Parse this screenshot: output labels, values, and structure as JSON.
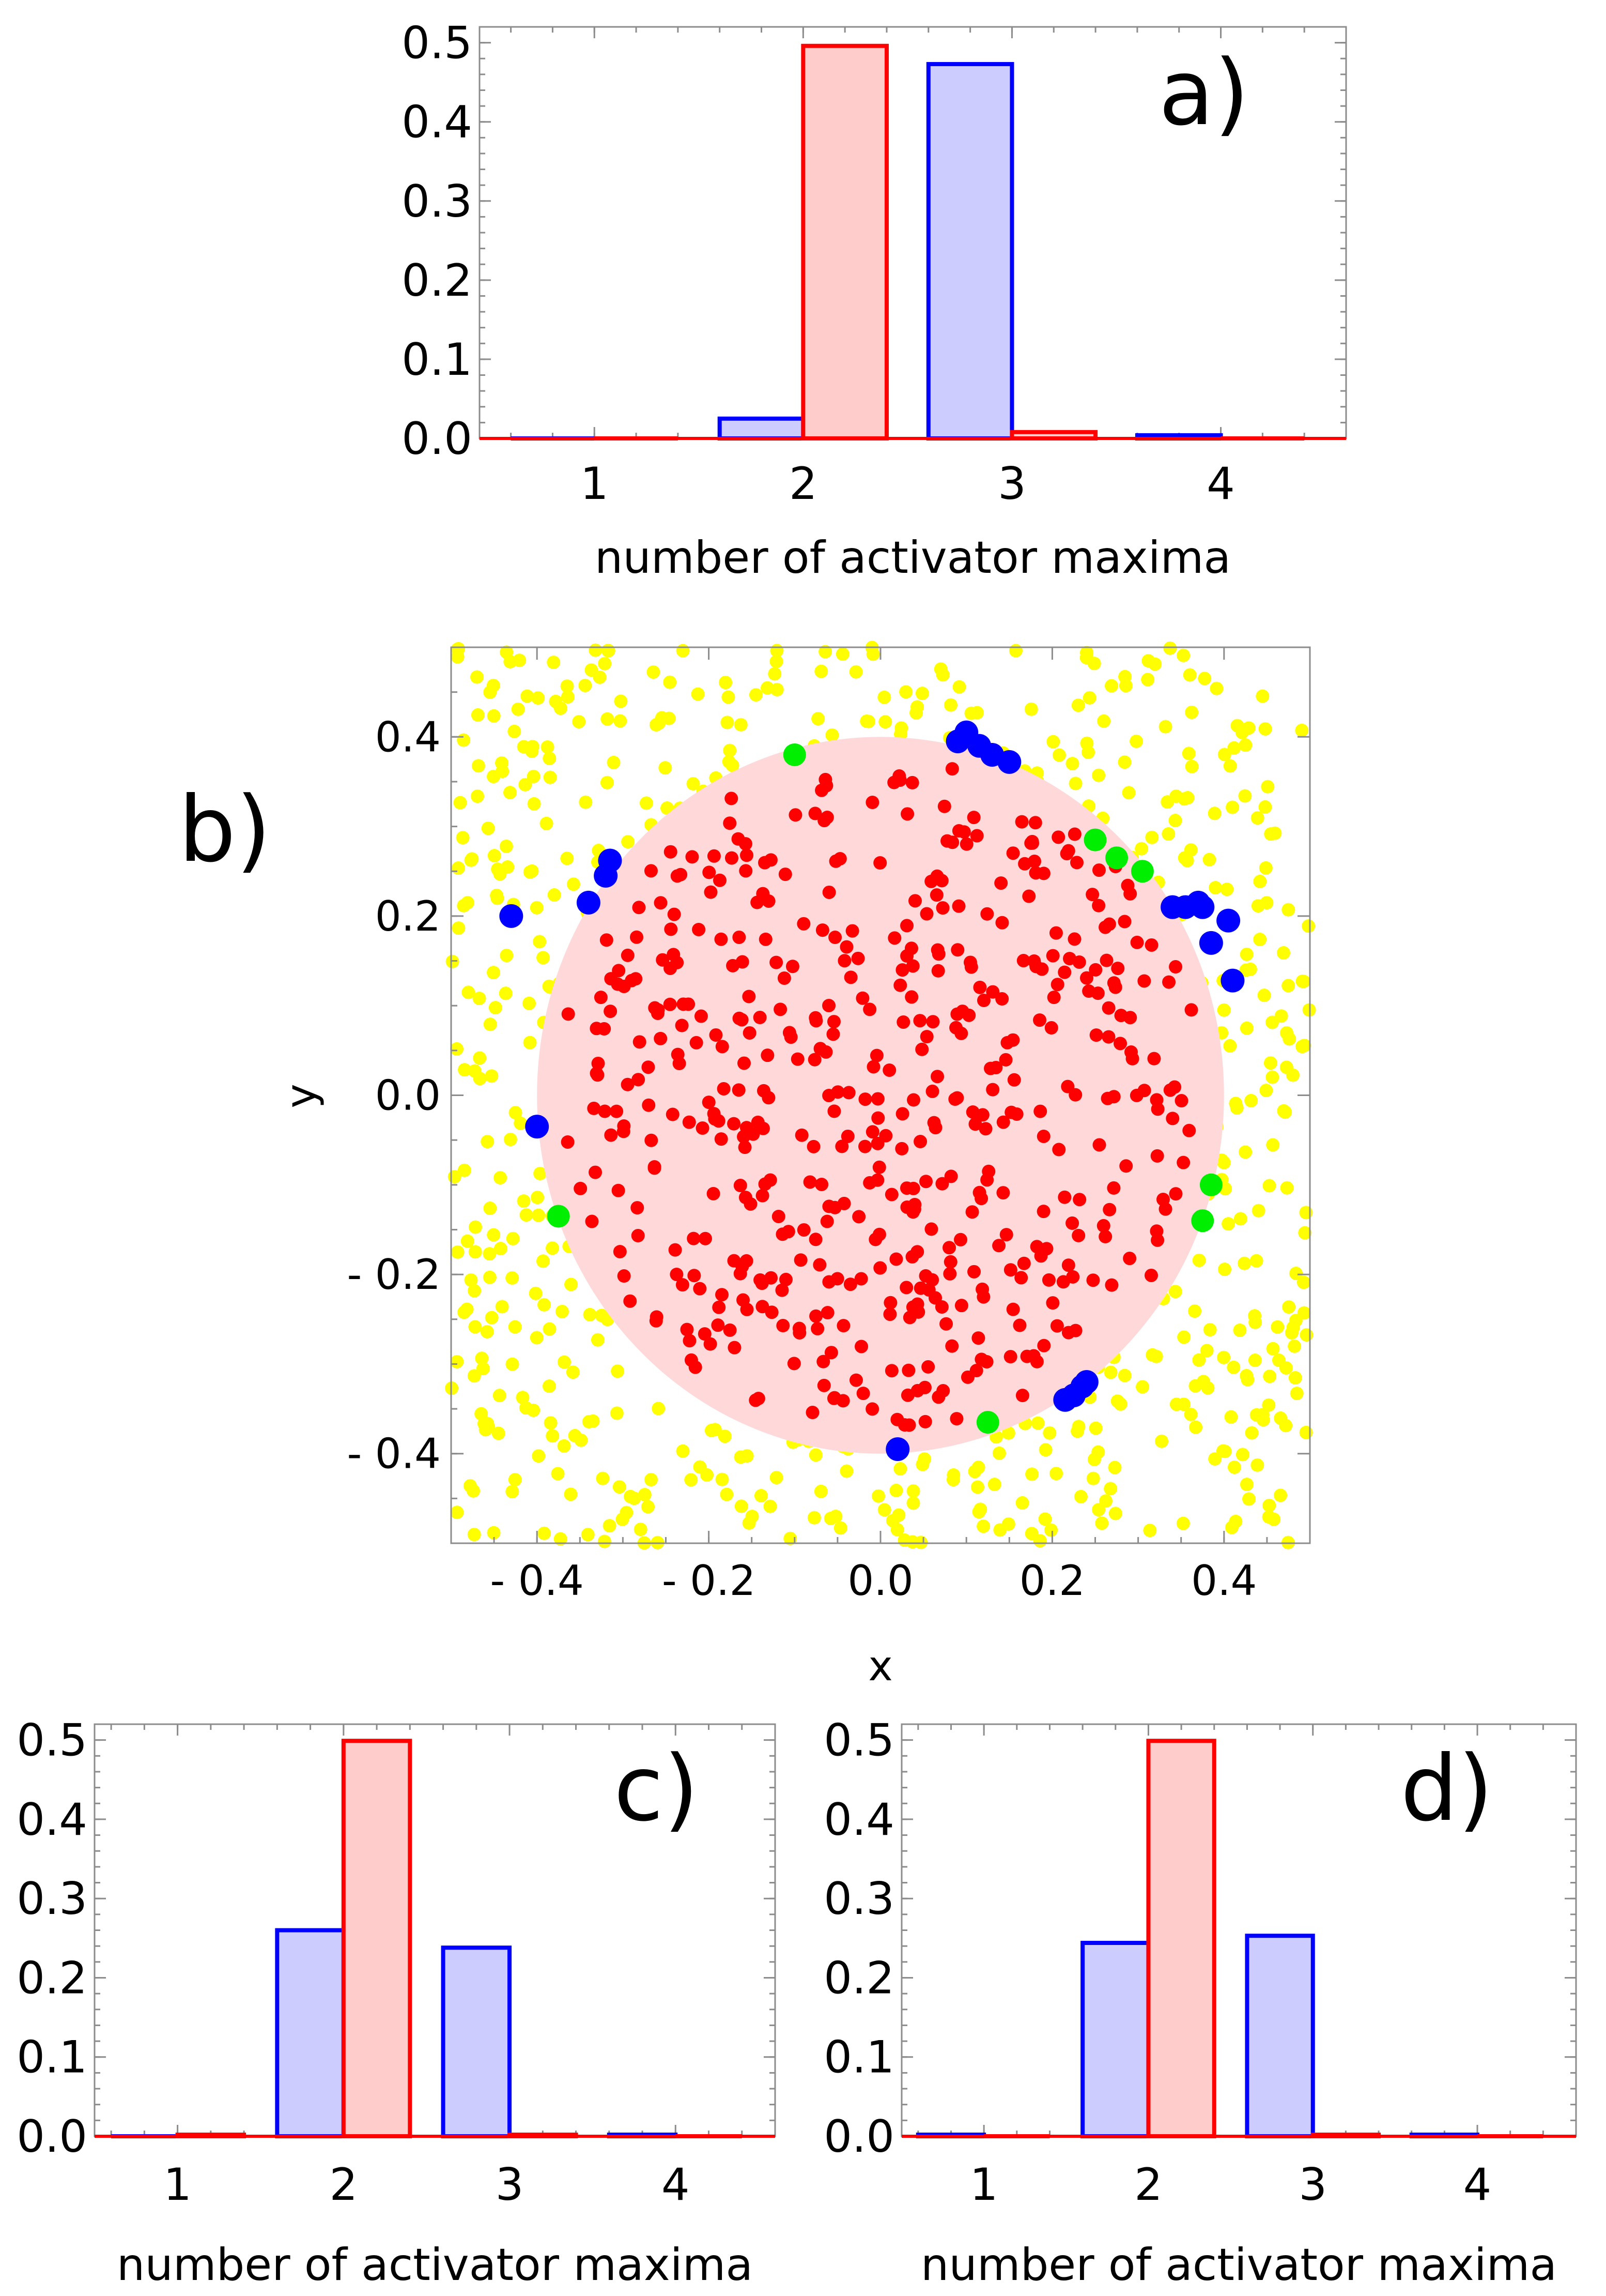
{
  "figure": {
    "colors": {
      "red": "#ff0000",
      "red_fill": "#ffcccc",
      "blue": "#0000ff",
      "blue_fill": "#ccccff",
      "yellow": "#ffff00",
      "green": "#00ee00",
      "disk_fill": "#ffd9d9",
      "frame": "#8c8c8c"
    }
  },
  "chart_data": [
    {
      "id": "a",
      "type": "bar",
      "panel_label": "a)",
      "xlabel": "number of activator maxima",
      "ylabel": "",
      "categories": [
        "1",
        "2",
        "3",
        "4"
      ],
      "x_ticks": [
        1,
        2,
        3,
        4
      ],
      "y_ticks": [
        "0.0",
        "0.1",
        "0.2",
        "0.3",
        "0.4",
        "0.5"
      ],
      "xlim": [
        0.45,
        4.6
      ],
      "ylim": [
        0,
        0.52
      ],
      "bar_width": 0.4,
      "series": [
        {
          "name": "blue",
          "offset": -0.2,
          "values": [
            0.0,
            0.025,
            0.473,
            0.004
          ],
          "color": "#0000ff",
          "fill": "#ccccff"
        },
        {
          "name": "red",
          "offset": 0.2,
          "values": [
            0.0,
            0.496,
            0.008,
            0.0
          ],
          "color": "#ff0000",
          "fill": "#ffcccc"
        }
      ]
    },
    {
      "id": "b",
      "type": "scatter",
      "panel_label": "b)",
      "xlabel": "x",
      "ylabel": "y",
      "xlim": [
        -0.5,
        0.5
      ],
      "ylim": [
        -0.5,
        0.5
      ],
      "x_ticks": [
        "- 0.4",
        "- 0.2",
        "0.0",
        "0.2",
        "0.4"
      ],
      "x_tick_values": [
        -0.4,
        -0.2,
        0.0,
        0.2,
        0.4
      ],
      "y_ticks": [
        "- 0.4",
        "- 0.2",
        "0.0",
        "0.2",
        "0.4"
      ],
      "y_tick_values": [
        -0.4,
        -0.2,
        0.0,
        0.2,
        0.4
      ],
      "disk": {
        "cx": 0.0,
        "cy": 0.0,
        "r": 0.4
      },
      "random_points": {
        "inside_count": 520,
        "outside_count": 560,
        "inside_color": "#ff0000",
        "outside_color": "#ffff00",
        "seed": 7
      },
      "blue_points": [
        [
          -0.43,
          0.2
        ],
        [
          -0.34,
          0.215
        ],
        [
          -0.32,
          0.245
        ],
        [
          -0.315,
          0.262
        ],
        [
          0.09,
          0.395
        ],
        [
          0.1,
          0.405
        ],
        [
          0.115,
          0.39
        ],
        [
          0.13,
          0.38
        ],
        [
          0.15,
          0.372
        ],
        [
          0.34,
          0.21
        ],
        [
          0.355,
          0.21
        ],
        [
          0.37,
          0.215
        ],
        [
          0.375,
          0.21
        ],
        [
          0.385,
          0.17
        ],
        [
          0.405,
          0.195
        ],
        [
          0.41,
          0.128
        ],
        [
          -0.4,
          -0.035
        ],
        [
          0.02,
          -0.395
        ],
        [
          0.215,
          -0.34
        ],
        [
          0.225,
          -0.335
        ],
        [
          0.235,
          -0.325
        ],
        [
          0.24,
          -0.32
        ]
      ],
      "green_points": [
        [
          -0.1,
          0.38
        ],
        [
          0.25,
          0.285
        ],
        [
          0.275,
          0.265
        ],
        [
          0.305,
          0.25
        ],
        [
          0.385,
          -0.1
        ],
        [
          0.375,
          -0.14
        ],
        [
          -0.375,
          -0.135
        ],
        [
          0.125,
          -0.365
        ]
      ]
    },
    {
      "id": "c",
      "type": "bar",
      "panel_label": "c)",
      "xlabel": "number of activator maxima",
      "ylabel": "",
      "categories": [
        "1",
        "2",
        "3",
        "4"
      ],
      "x_ticks": [
        1,
        2,
        3,
        4
      ],
      "y_ticks": [
        "0.0",
        "0.1",
        "0.2",
        "0.3",
        "0.4",
        "0.5"
      ],
      "xlim": [
        0.5,
        4.6
      ],
      "ylim": [
        0,
        0.52
      ],
      "bar_width": 0.4,
      "series": [
        {
          "name": "blue",
          "offset": -0.2,
          "values": [
            0.0,
            0.26,
            0.238,
            0.002
          ],
          "color": "#0000ff",
          "fill": "#ccccff"
        },
        {
          "name": "red",
          "offset": 0.2,
          "values": [
            0.002,
            0.499,
            0.002,
            0.0
          ],
          "color": "#ff0000",
          "fill": "#ffcccc"
        }
      ]
    },
    {
      "id": "d",
      "type": "bar",
      "panel_label": "d)",
      "xlabel": "number of activator maxima",
      "ylabel": "",
      "categories": [
        "1",
        "2",
        "3",
        "4"
      ],
      "x_ticks": [
        1,
        2,
        3,
        4
      ],
      "y_ticks": [
        "0.0",
        "0.1",
        "0.2",
        "0.3",
        "0.4",
        "0.5"
      ],
      "xlim": [
        0.5,
        4.6
      ],
      "ylim": [
        0,
        0.52
      ],
      "bar_width": 0.4,
      "series": [
        {
          "name": "blue",
          "offset": -0.2,
          "values": [
            0.002,
            0.244,
            0.253,
            0.002
          ],
          "color": "#0000ff",
          "fill": "#ccccff"
        },
        {
          "name": "red",
          "offset": 0.2,
          "values": [
            0.0,
            0.499,
            0.002,
            0.0
          ],
          "color": "#ff0000",
          "fill": "#ffcccc"
        }
      ]
    }
  ]
}
